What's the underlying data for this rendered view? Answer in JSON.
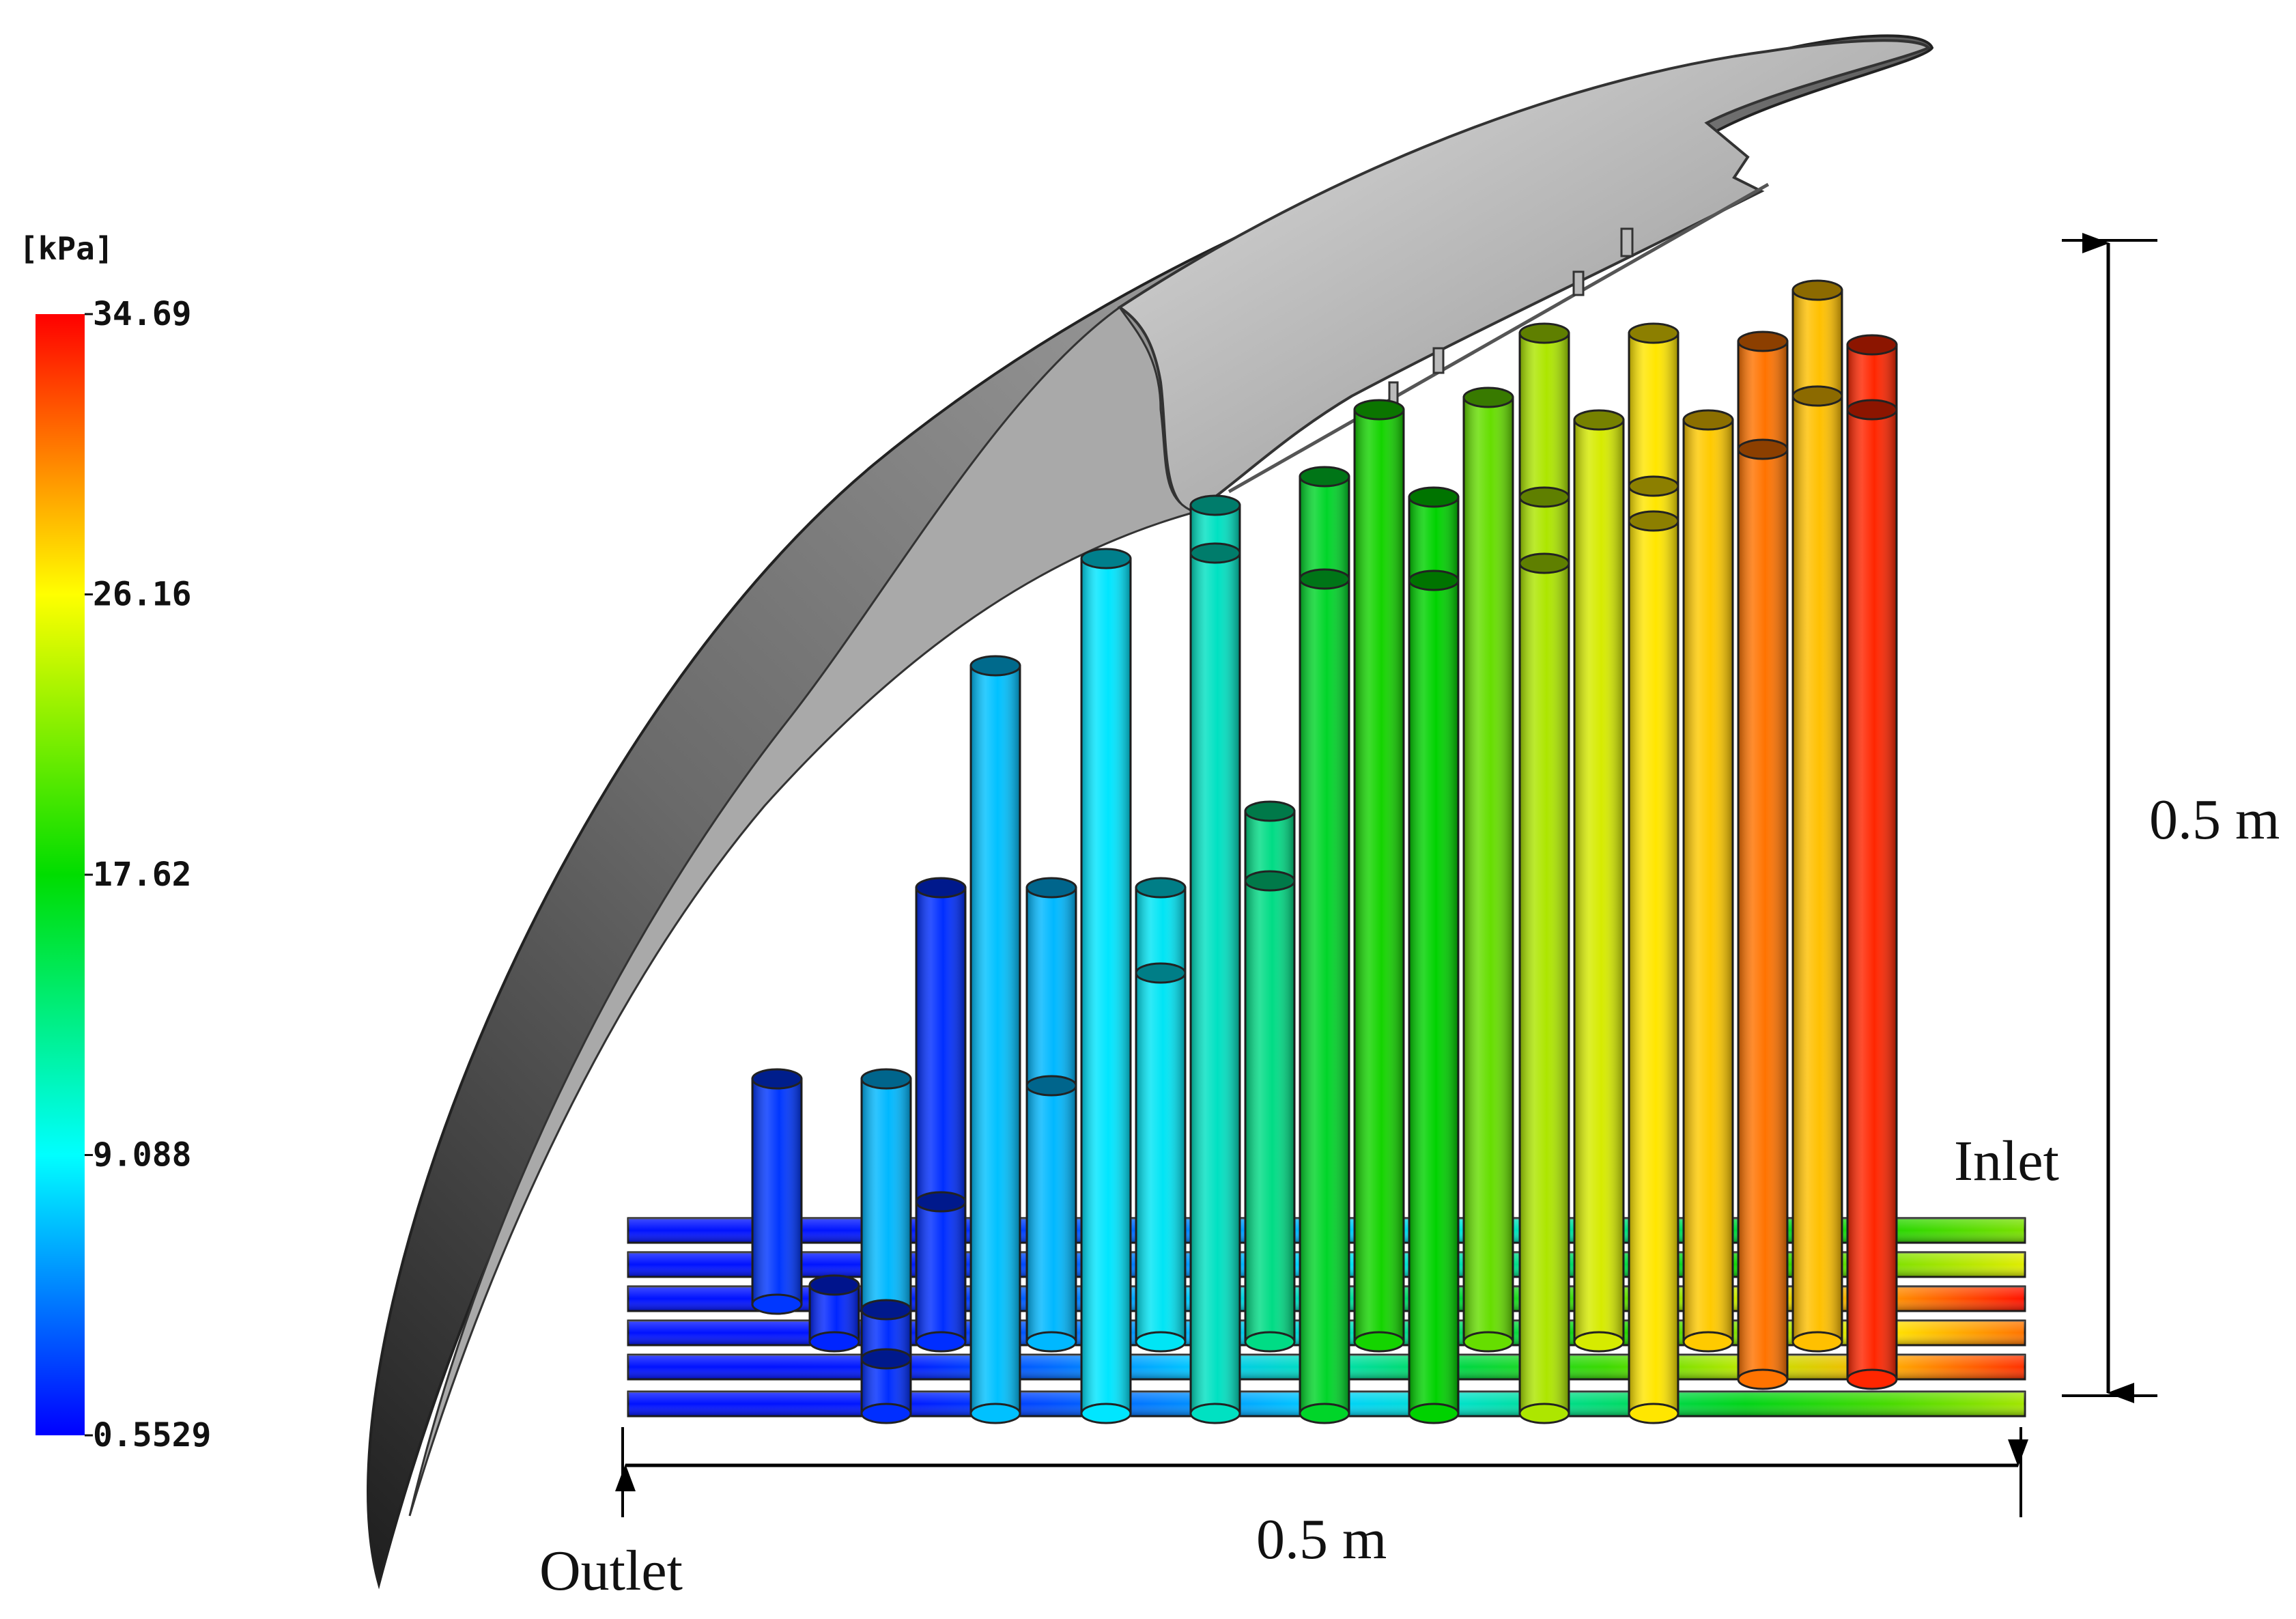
{
  "colorbar": {
    "unit": "[kPa]",
    "ticks": [
      "34.69",
      "26.16",
      "17.62",
      "9.088",
      "0.5529"
    ],
    "colors": [
      "#ff0000",
      "#ffff00",
      "#00dd00",
      "#00ffff",
      "#0000ff"
    ]
  },
  "annotations": {
    "height_dim": "0.5 m",
    "width_dim": "0.5 m",
    "inlet": "Inlet",
    "outlet": "Outlet"
  },
  "colors": {
    "wing_light": "#c8c8c8",
    "wing_dark": "#3a3a3a",
    "dimension_line": "#000000"
  }
}
